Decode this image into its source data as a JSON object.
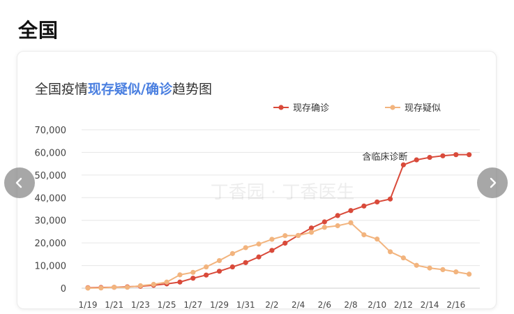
{
  "region_title": "全国",
  "chart_data": {
    "type": "line",
    "title_parts": [
      "全国疫情",
      "现存疑似/确诊",
      "趋势图"
    ],
    "categories": [
      "1/19",
      "1/20",
      "1/21",
      "1/22",
      "1/23",
      "1/24",
      "1/25",
      "1/26",
      "1/27",
      "1/28",
      "1/29",
      "1/30",
      "1/31",
      "2/1",
      "2/2",
      "2/3",
      "2/4",
      "2/5",
      "2/6",
      "2/7",
      "2/8",
      "2/9",
      "2/10",
      "2/11",
      "2/12",
      "2/13",
      "2/14",
      "2/15",
      "2/16",
      "2/17"
    ],
    "tick_labels": [
      "1/19",
      "1/21",
      "1/23",
      "1/25",
      "1/27",
      "1/29",
      "1/31",
      "2/2",
      "2/4",
      "2/6",
      "2/8",
      "2/10",
      "2/12",
      "2/14",
      "2/16"
    ],
    "y_ticks": [
      "0",
      "10,000",
      "20,000",
      "30,000",
      "40,000",
      "50,000",
      "60,000",
      "70,000"
    ],
    "ylim": [
      0,
      70000
    ],
    "grid": true,
    "legend_position": "top-right",
    "series": [
      {
        "name": "现存确诊",
        "color": "#d94a3a",
        "values": [
          200,
          300,
          400,
          600,
          830,
          1300,
          1900,
          2700,
          4400,
          5800,
          7500,
          9400,
          11300,
          13800,
          16700,
          19900,
          23300,
          26600,
          29300,
          32100,
          34300,
          36300,
          38100,
          39400,
          54500,
          56700,
          57800,
          58500,
          59000,
          59000
        ]
      },
      {
        "name": "现存疑似",
        "color": "#f2b47e",
        "values": [
          50,
          100,
          400,
          400,
          1100,
          1700,
          2700,
          5900,
          7000,
          9400,
          12200,
          15300,
          17900,
          19500,
          21600,
          23200,
          23300,
          24700,
          26900,
          27600,
          28900,
          23600,
          21700,
          16100,
          13400,
          10100,
          8900,
          8200,
          7200,
          6200
        ]
      }
    ],
    "annotation": {
      "text": "含临床诊断",
      "category": "2/12"
    },
    "watermark": "丁香园 · 丁香医生"
  },
  "icons": {
    "prev": "chevron-left-icon",
    "next": "chevron-right-icon"
  }
}
